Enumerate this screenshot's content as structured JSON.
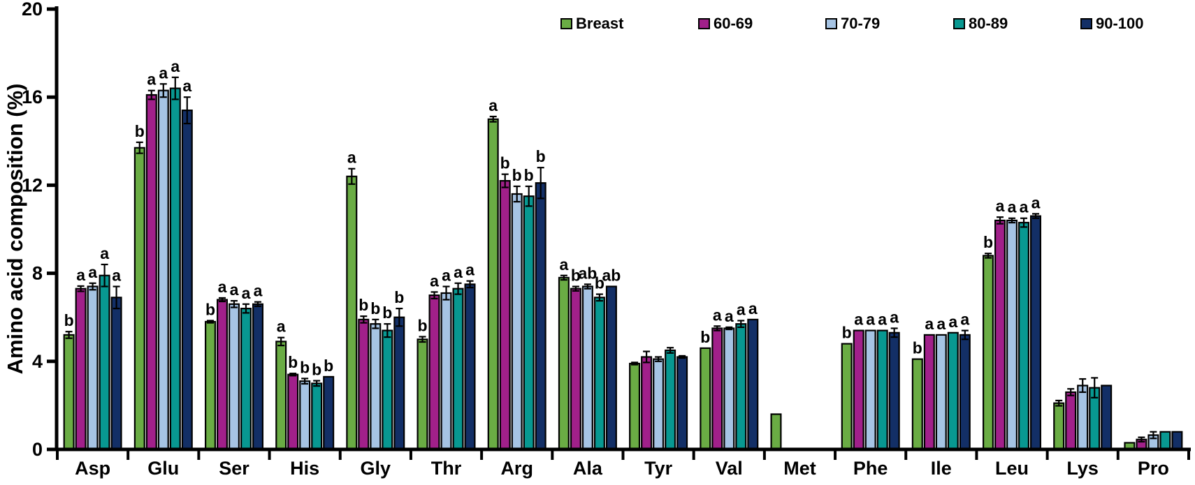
{
  "figure": {
    "background": "#ffffff",
    "axis_color": "#000000"
  },
  "chart_data": {
    "type": "bar",
    "title": "",
    "xlabel": "",
    "ylabel": "Amino acid composition (%)",
    "ylim": [
      0,
      20
    ],
    "yticks": [
      0,
      4,
      8,
      12,
      16,
      20
    ],
    "grid": false,
    "legend_position": "top",
    "error_bars": true,
    "significance_letters": true,
    "categories": [
      "Asp",
      "Glu",
      "Ser",
      "His",
      "Gly",
      "Thr",
      "Arg",
      "Ala",
      "Tyr",
      "Val",
      "Met",
      "Phe",
      "Ile",
      "Leu",
      "Lys",
      "Pro"
    ],
    "series": [
      {
        "name": "Breast",
        "color": "#6AAC44",
        "values": [
          5.2,
          13.7,
          5.8,
          4.9,
          12.4,
          5.0,
          15.0,
          7.8,
          3.9,
          4.6,
          1.6,
          4.8,
          4.1,
          8.8,
          2.1,
          0.3
        ],
        "errors": [
          0.15,
          0.25,
          0.05,
          0.18,
          0.35,
          0.12,
          0.12,
          0.1,
          0.05,
          0,
          0,
          0,
          0,
          0.1,
          0.12,
          0
        ],
        "letters": [
          "b",
          "b",
          "b",
          "a",
          "a",
          "b",
          "a",
          "a",
          "",
          "b",
          "",
          "b",
          "b",
          "b",
          "",
          ""
        ]
      },
      {
        "name": "60-69",
        "color": "#A1208A",
        "values": [
          7.3,
          16.1,
          6.8,
          3.4,
          5.9,
          7.0,
          12.2,
          7.3,
          4.2,
          5.5,
          0,
          5.4,
          5.2,
          10.4,
          2.6,
          0.45
        ],
        "errors": [
          0.12,
          0.2,
          0.08,
          0.05,
          0.15,
          0.15,
          0.3,
          0.1,
          0.25,
          0.1,
          0,
          0,
          0,
          0.15,
          0.15,
          0.1
        ],
        "letters": [
          "a",
          "a",
          "a",
          "b",
          "b",
          "a",
          "b",
          "b",
          "",
          "a",
          "",
          "a",
          "a",
          "a",
          "",
          ""
        ]
      },
      {
        "name": "70-79",
        "color": "#A6C4E4",
        "values": [
          7.4,
          16.3,
          6.6,
          3.1,
          5.7,
          7.1,
          11.6,
          7.4,
          4.1,
          5.5,
          0,
          5.4,
          5.2,
          10.4,
          2.9,
          0.65
        ],
        "errors": [
          0.15,
          0.3,
          0.15,
          0.12,
          0.2,
          0.3,
          0.35,
          0.1,
          0.1,
          0.05,
          0,
          0,
          0,
          0.1,
          0.3,
          0.15
        ],
        "letters": [
          "a",
          "a",
          "a",
          "b",
          "b",
          "a",
          "b",
          "ab",
          "",
          "a",
          "",
          "a",
          "a",
          "a",
          "",
          ""
        ]
      },
      {
        "name": "80-89",
        "color": "#089891",
        "values": [
          7.9,
          16.4,
          6.4,
          3.0,
          5.4,
          7.3,
          11.5,
          6.9,
          4.5,
          5.7,
          0,
          5.4,
          5.3,
          10.3,
          2.8,
          0.8
        ],
        "errors": [
          0.5,
          0.5,
          0.2,
          0.12,
          0.3,
          0.25,
          0.45,
          0.15,
          0.12,
          0.15,
          0,
          0,
          0,
          0.2,
          0.45,
          0
        ],
        "letters": [
          "a",
          "a",
          "a",
          "b",
          "b",
          "a",
          "b",
          "b",
          "",
          "a",
          "",
          "a",
          "a",
          "a",
          "",
          ""
        ]
      },
      {
        "name": "90-100",
        "color": "#132F66",
        "values": [
          6.9,
          15.4,
          6.6,
          3.3,
          6.0,
          7.5,
          12.1,
          7.4,
          4.2,
          5.9,
          0,
          5.3,
          5.2,
          10.6,
          2.9,
          0.8
        ],
        "errors": [
          0.5,
          0.6,
          0.1,
          0,
          0.4,
          0.15,
          0.7,
          0,
          0.05,
          0,
          0,
          0.2,
          0.2,
          0.1,
          0,
          0
        ],
        "letters": [
          "a",
          "a",
          "a",
          "b",
          "b",
          "a",
          "b",
          "ab",
          "",
          "a",
          "",
          "a",
          "a",
          "a",
          "",
          ""
        ]
      }
    ]
  }
}
